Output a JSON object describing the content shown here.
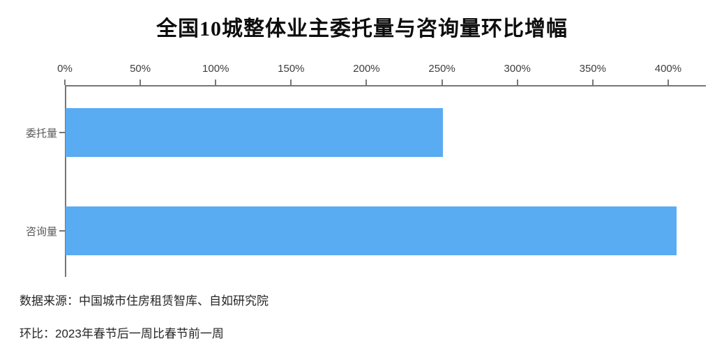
{
  "title": "全国10城整体业主委托量与咨询量环比增幅",
  "chart_data": {
    "type": "bar",
    "orientation": "horizontal",
    "title": "全国10城整体业主委托量与咨询量环比增幅",
    "categories": [
      "委托量",
      "咨询量"
    ],
    "values": [
      250,
      405
    ],
    "value_unit": "%",
    "x_tick_labels": [
      "0%",
      "50%",
      "100%",
      "150%",
      "200%",
      "250%",
      "300%",
      "350%",
      "400%"
    ],
    "x_tick_values": [
      0,
      50,
      100,
      150,
      200,
      250,
      300,
      350,
      400
    ],
    "xlim": [
      0,
      425
    ],
    "xlabel": "",
    "ylabel": "",
    "grid": false,
    "legend": null,
    "axis_position": "top",
    "bar_color": "#59abf2",
    "axis_color": "#767676"
  },
  "footer": {
    "source": "数据来源：中国城市住房租赁智库、自如研究院",
    "note": "环比：2023年春节后一周比春节前一周"
  }
}
